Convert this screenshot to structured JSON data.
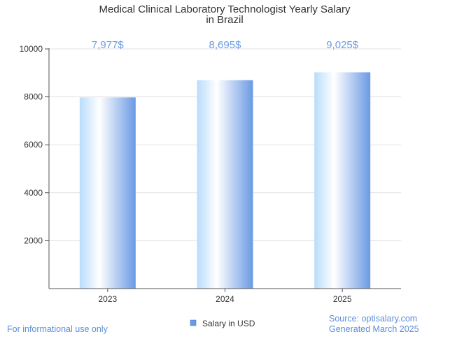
{
  "chart_data": {
    "type": "bar",
    "title": "Medical Clinical Laboratory Technologist Yearly Salary in Brazil",
    "title_lines": [
      "Medical Clinical Laboratory Technologist Yearly Salary",
      "in Brazil"
    ],
    "categories": [
      "2023",
      "2024",
      "2025"
    ],
    "series": [
      {
        "name": "Salary in USD",
        "values": [
          7977,
          8695,
          9025
        ]
      }
    ],
    "data_labels": [
      "7,977$",
      "8,695$",
      "9,025$"
    ],
    "ylim": [
      0,
      10000
    ],
    "yticks": [
      2000,
      4000,
      6000,
      8000,
      10000
    ],
    "grid": true,
    "legend": "bottom-center",
    "colors": {
      "bar_light": "#ffffff",
      "bar_mid": "#b9dcfb",
      "bar_dark": "#6a9ae4",
      "accent": "#5b8ed9"
    }
  },
  "footer": {
    "left": "For informational use only",
    "source": "Source: optisalary.com",
    "generated": "Generated March 2025"
  }
}
